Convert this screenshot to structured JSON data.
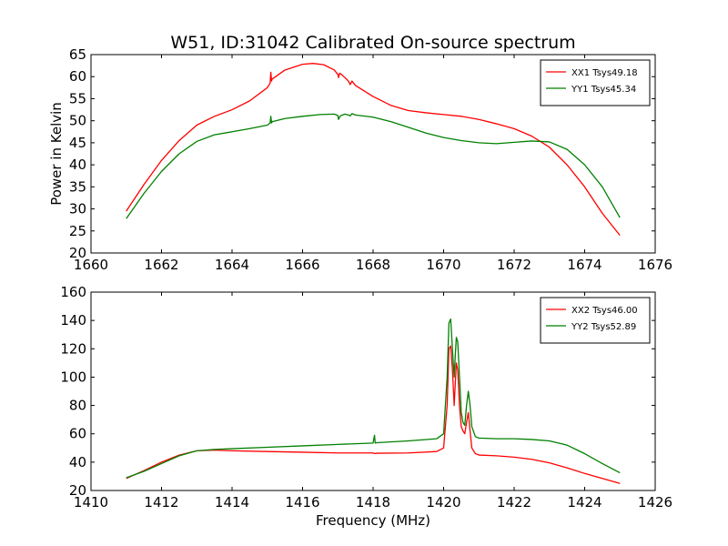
{
  "figure": {
    "title": "W51, ID:31042 Calibrated On-source spectrum",
    "ylabel": "Power in Kelvin",
    "xlabel": "Frequency (MHz)"
  },
  "chart_data": [
    {
      "type": "line",
      "xlim": [
        1660,
        1676
      ],
      "ylim": [
        20,
        65
      ],
      "x_ticks": [
        1660,
        1662,
        1664,
        1666,
        1668,
        1670,
        1672,
        1674,
        1676
      ],
      "y_ticks": [
        20,
        25,
        30,
        35,
        40,
        45,
        50,
        55,
        60,
        65
      ],
      "grid": false,
      "legend_position": "top-right",
      "series": [
        {
          "name": "XX1 Tsys49.18",
          "color": "#ff0000",
          "x": [
            1661.0,
            1661.5,
            1662.0,
            1662.5,
            1663.0,
            1663.5,
            1664.0,
            1664.5,
            1665.0,
            1665.08,
            1665.1,
            1665.12,
            1665.14,
            1665.2,
            1665.5,
            1666.0,
            1666.3,
            1666.6,
            1666.9,
            1667.0,
            1667.02,
            1667.05,
            1667.1,
            1667.2,
            1667.3,
            1667.35,
            1667.4,
            1667.5,
            1668.0,
            1668.5,
            1669.0,
            1669.5,
            1670.0,
            1670.5,
            1671.0,
            1671.5,
            1672.0,
            1672.5,
            1673.0,
            1673.5,
            1674.0,
            1674.5,
            1675.0
          ],
          "y": [
            29.5,
            35.5,
            41.0,
            45.5,
            49.0,
            51.0,
            52.5,
            54.5,
            57.5,
            58.5,
            61.0,
            59.0,
            59.5,
            59.8,
            61.5,
            62.8,
            63.0,
            62.7,
            61.5,
            60.5,
            59.8,
            60.8,
            60.5,
            59.8,
            59.0,
            58.2,
            59.0,
            58.0,
            55.5,
            53.5,
            52.3,
            51.8,
            51.4,
            51.0,
            50.3,
            49.3,
            48.2,
            46.5,
            44.0,
            40.0,
            35.0,
            29.0,
            24.0
          ]
        },
        {
          "name": "YY1 Tsys45.34",
          "color": "#008000",
          "x": [
            1661.0,
            1661.5,
            1662.0,
            1662.5,
            1663.0,
            1663.5,
            1664.0,
            1664.5,
            1665.0,
            1665.08,
            1665.1,
            1665.12,
            1665.14,
            1665.2,
            1665.5,
            1666.0,
            1666.5,
            1666.9,
            1667.0,
            1667.02,
            1667.06,
            1667.1,
            1667.2,
            1667.3,
            1667.35,
            1667.4,
            1667.5,
            1668.0,
            1668.5,
            1669.0,
            1669.5,
            1670.0,
            1670.5,
            1671.0,
            1671.5,
            1672.0,
            1672.5,
            1673.0,
            1673.5,
            1674.0,
            1674.5,
            1675.0
          ],
          "y": [
            27.8,
            33.5,
            38.5,
            42.5,
            45.3,
            46.8,
            47.5,
            48.2,
            49.0,
            49.5,
            51.0,
            49.5,
            49.8,
            49.9,
            50.5,
            51.0,
            51.4,
            51.5,
            51.2,
            50.3,
            51.0,
            51.2,
            51.5,
            51.3,
            51.1,
            51.6,
            51.3,
            50.8,
            49.8,
            48.5,
            47.2,
            46.2,
            45.5,
            45.0,
            44.8,
            45.1,
            45.4,
            45.2,
            43.5,
            40.0,
            35.0,
            28.0
          ]
        }
      ]
    },
    {
      "type": "line",
      "xlim": [
        1410,
        1426
      ],
      "ylim": [
        20,
        160
      ],
      "x_ticks": [
        1410,
        1412,
        1414,
        1416,
        1418,
        1420,
        1422,
        1424,
        1426
      ],
      "y_ticks": [
        20,
        40,
        60,
        80,
        100,
        120,
        140,
        160
      ],
      "grid": false,
      "legend_position": "top-right",
      "series": [
        {
          "name": "XX2 Tsys46.00",
          "color": "#ff0000",
          "x": [
            1411.0,
            1411.5,
            1412.0,
            1412.5,
            1413.0,
            1413.5,
            1414.0,
            1415.0,
            1416.0,
            1417.0,
            1418.0,
            1418.05,
            1418.1,
            1419.0,
            1419.8,
            1420.0,
            1420.1,
            1420.15,
            1420.2,
            1420.25,
            1420.3,
            1420.33,
            1420.36,
            1420.4,
            1420.45,
            1420.5,
            1420.55,
            1420.6,
            1420.65,
            1420.7,
            1420.75,
            1420.8,
            1420.9,
            1421.0,
            1421.5,
            1422.0,
            1422.5,
            1423.0,
            1423.5,
            1424.0,
            1424.5,
            1425.0
          ],
          "y": [
            28.5,
            34.0,
            40.0,
            45.0,
            48.0,
            48.5,
            48.0,
            47.5,
            47.0,
            46.5,
            46.5,
            46.0,
            46.3,
            46.5,
            47.5,
            50.0,
            80.0,
            120.0,
            122.0,
            105.0,
            80.0,
            95.0,
            110.0,
            105.0,
            80.0,
            65.0,
            62.0,
            60.0,
            68.0,
            75.0,
            62.0,
            50.0,
            46.0,
            45.0,
            44.5,
            43.5,
            42.0,
            39.5,
            36.0,
            32.0,
            28.5,
            25.0
          ]
        },
        {
          "name": "YY2 Tsys52.89",
          "color": "#008000",
          "x": [
            1411.0,
            1411.5,
            1412.0,
            1412.5,
            1413.0,
            1413.5,
            1414.0,
            1415.0,
            1416.0,
            1417.0,
            1418.0,
            1418.04,
            1418.06,
            1418.1,
            1419.0,
            1419.8,
            1420.0,
            1420.1,
            1420.15,
            1420.2,
            1420.25,
            1420.3,
            1420.33,
            1420.36,
            1420.4,
            1420.45,
            1420.5,
            1420.55,
            1420.6,
            1420.65,
            1420.7,
            1420.75,
            1420.8,
            1420.9,
            1421.0,
            1421.5,
            1422.0,
            1422.5,
            1423.0,
            1423.5,
            1424.0,
            1424.5,
            1425.0
          ],
          "y": [
            29.0,
            33.5,
            39.0,
            44.5,
            48.0,
            49.0,
            49.5,
            50.5,
            51.5,
            52.5,
            53.5,
            59.0,
            53.5,
            53.7,
            55.0,
            56.5,
            60.0,
            100.0,
            138.0,
            141.0,
            120.0,
            100.0,
            115.0,
            128.0,
            125.0,
            100.0,
            75.0,
            68.0,
            66.0,
            80.0,
            90.0,
            80.0,
            65.0,
            58.0,
            57.0,
            56.5,
            56.5,
            56.0,
            55.0,
            52.0,
            46.0,
            39.0,
            32.5
          ]
        }
      ]
    }
  ]
}
